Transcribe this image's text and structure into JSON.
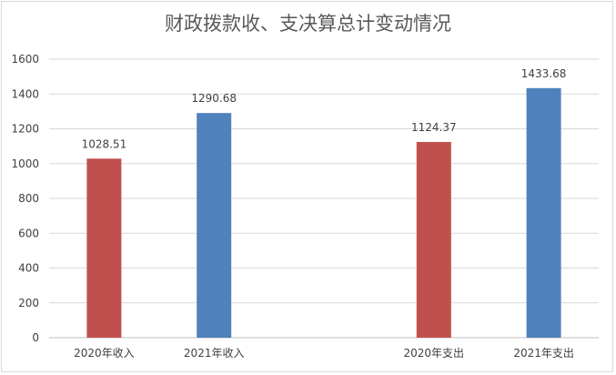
{
  "chart_data": {
    "type": "bar",
    "title": "财政拨款收、支决算总计变动情况",
    "categories": [
      "2020年收入",
      "2021年收入",
      "",
      "2020年支出",
      "2021年支出"
    ],
    "values": [
      1028.51,
      1290.68,
      null,
      1124.37,
      1433.68
    ],
    "value_labels": [
      "1028.51",
      "1290.68",
      "",
      "1124.37",
      "1433.68"
    ],
    "colors": [
      "#C0504D",
      "#4F81BD",
      null,
      "#C0504D",
      "#4F81BD"
    ],
    "ylim": [
      0,
      1600
    ],
    "yticks": [
      0,
      200,
      400,
      600,
      800,
      1000,
      1200,
      1400,
      1600
    ],
    "grid": true,
    "legend": "none"
  }
}
